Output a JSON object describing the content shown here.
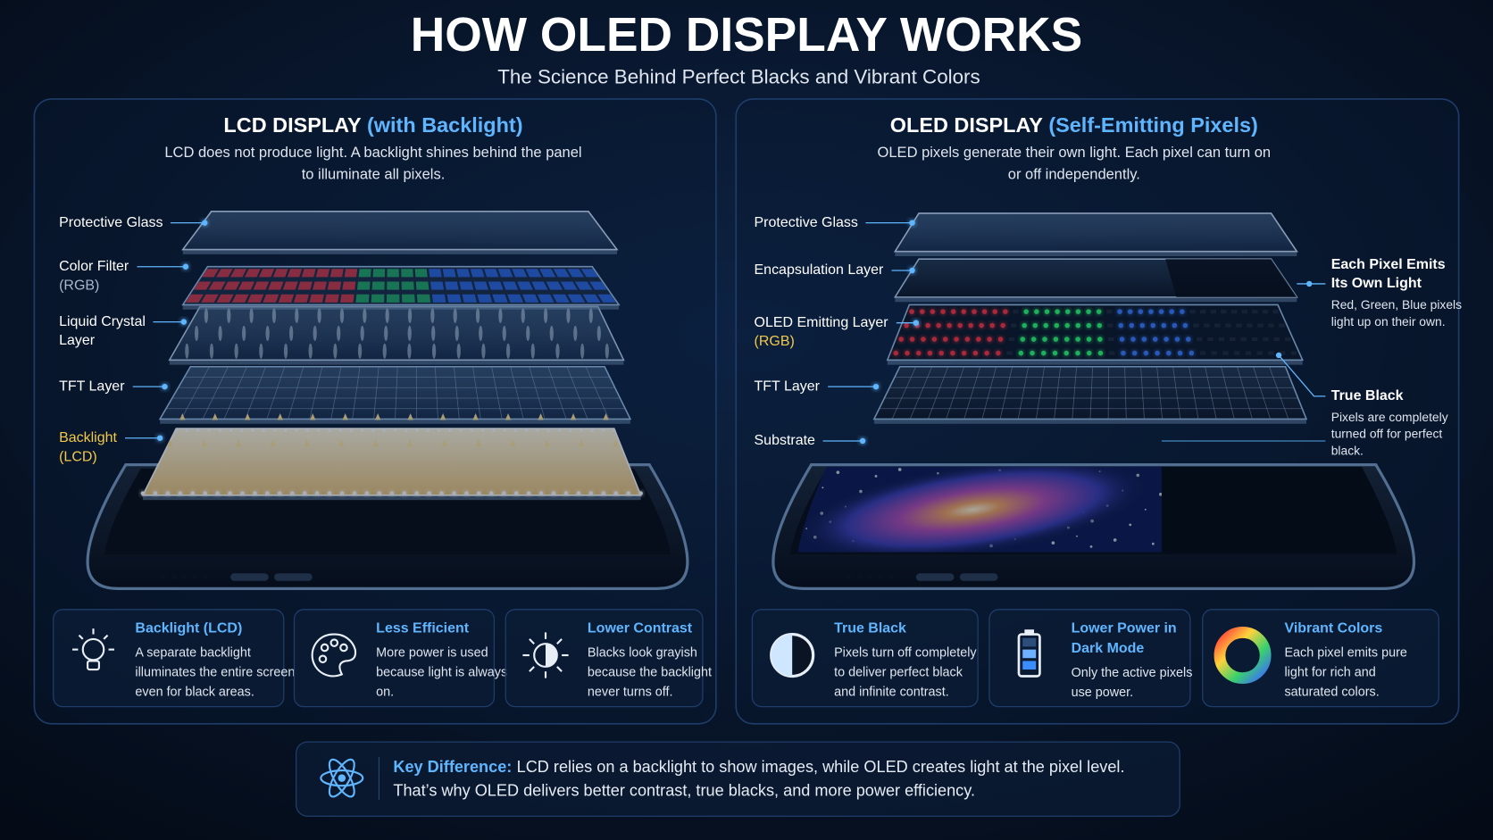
{
  "header": {
    "title": "HOW OLED DISPLAY WORKS",
    "subtitle": "The Science Behind Perfect Blacks and Vibrant Colors"
  },
  "panels": [
    {
      "title": "LCD DISPLAY",
      "title_accent": "(with Backlight)",
      "description": [
        "LCD does not produce light. A backlight shines behind the panel",
        "to illuminate all pixels."
      ],
      "layers": [
        {
          "lines": [
            "Protective Glass"
          ]
        },
        {
          "lines": [
            "Color Filter"
          ],
          "note": "(RGB)"
        },
        {
          "lines": [
            "Liquid Crystal",
            "Layer"
          ]
        },
        {
          "lines": [
            "TFT Layer"
          ]
        },
        {
          "lines": [
            "Backlight"
          ],
          "note": "(LCD)",
          "color": "#f2c94c"
        }
      ],
      "features": [
        {
          "title": [
            "Backlight (LCD)"
          ],
          "text": [
            "A separate backlight",
            "illuminates the entire screen",
            "even for black areas."
          ]
        },
        {
          "title": [
            "Less Efficient"
          ],
          "text": [
            "More power is used",
            "because light is always",
            "on."
          ]
        },
        {
          "title": [
            "Lower Contrast"
          ],
          "text": [
            "Blacks look grayish",
            "because the backlight",
            "never turns off."
          ]
        }
      ]
    },
    {
      "title": "OLED DISPLAY",
      "title_accent": "(Self-Emitting Pixels)",
      "description": [
        "OLED pixels generate their own light. Each pixel can turn on",
        "or off independently."
      ],
      "layers": [
        {
          "lines": [
            "Protective Glass"
          ]
        },
        {
          "lines": [
            "Encapsulation Layer"
          ]
        },
        {
          "lines": [
            "OLED Emitting Layer"
          ],
          "note": "(RGB)",
          "note_color": "#f2c94c"
        },
        {
          "lines": [
            "TFT Layer"
          ]
        },
        {
          "lines": [
            "Substrate"
          ]
        }
      ],
      "callouts": [
        {
          "title": [
            "Each Pixel Emits",
            "Its Own Light"
          ],
          "text": [
            "Red, Green, Blue pixels",
            "light up on their own."
          ]
        },
        {
          "title": [
            "True Black"
          ],
          "text": [
            "Pixels are completely",
            "turned off for perfect",
            "black."
          ]
        }
      ],
      "features": [
        {
          "title": [
            "True Black"
          ],
          "text": [
            "Pixels turn off completely",
            "to deliver perfect black",
            "and infinite contrast."
          ]
        },
        {
          "title": [
            "Lower Power in",
            "Dark Mode"
          ],
          "text": [
            "Only the active pixels",
            "use power."
          ]
        },
        {
          "title": [
            "Vibrant Colors"
          ],
          "text": [
            "Each pixel emits pure",
            "light for rich and",
            "saturated colors."
          ]
        }
      ]
    }
  ],
  "footer": {
    "label": "Key Difference:",
    "lines": [
      "LCD relies on a backlight to show images, while OLED creates light at the pixel level.",
      "That’s why OLED delivers better contrast, true blacks, and more power efficiency."
    ]
  }
}
